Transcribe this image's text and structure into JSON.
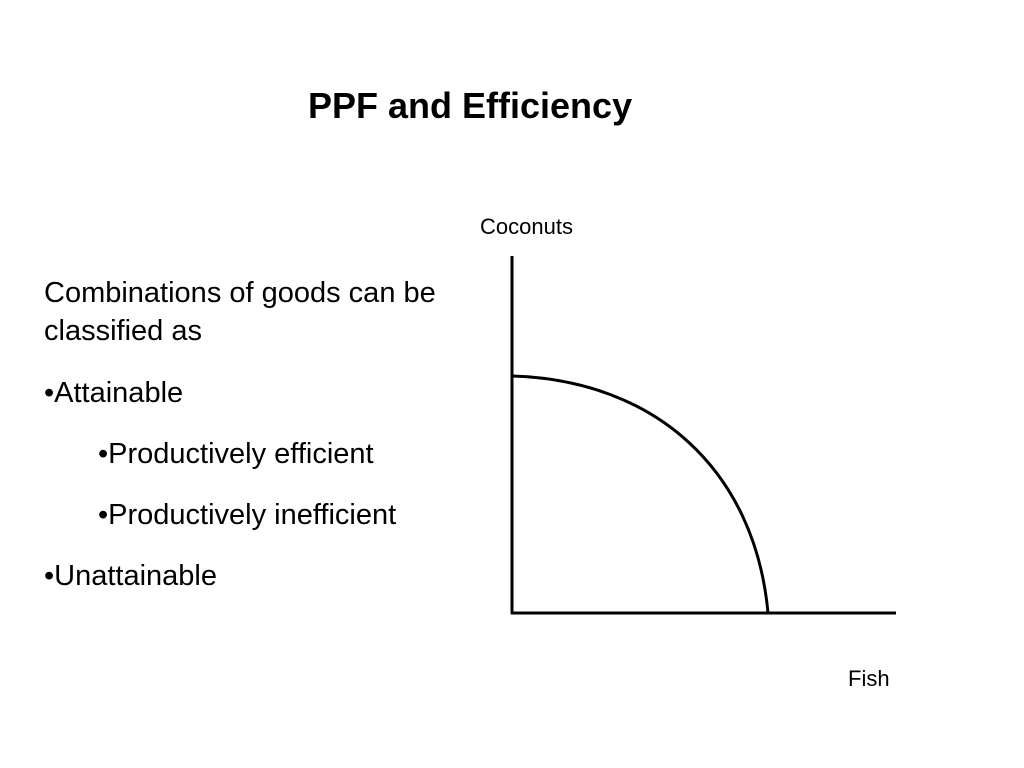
{
  "slide": {
    "title": "PPF and Efficiency"
  },
  "text_block": {
    "intro": "Combinations of goods can be classified as",
    "items": [
      {
        "text": "•Attainable",
        "level": 1
      },
      {
        "text": "•Productively efficient",
        "level": 2
      },
      {
        "text": "•Productively inefficient",
        "level": 2
      },
      {
        "text": "•Unattainable",
        "level": 1
      }
    ]
  },
  "diagram": {
    "y_axis_label": "Coconuts",
    "x_axis_label": "Fish",
    "stroke_color": "#000000"
  }
}
